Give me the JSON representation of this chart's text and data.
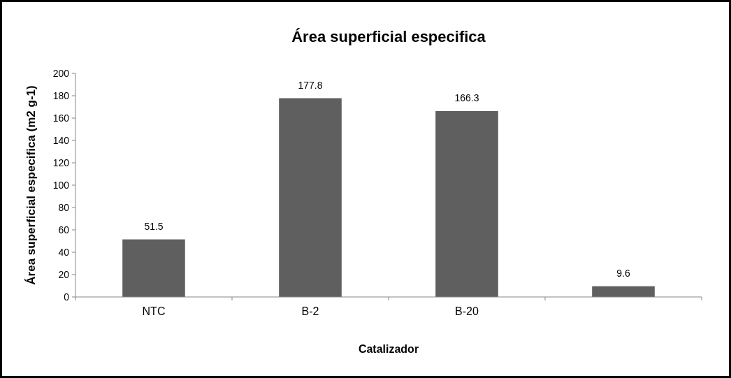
{
  "chart_data": {
    "type": "bar",
    "title": "Área superficial especifica",
    "xlabel": "Catalizador",
    "ylabel": "Área superficial especifica (m2 g-1)",
    "categories": [
      "NTC",
      "B-2",
      "B-20",
      null
    ],
    "values": [
      51.5,
      177.8,
      166.3,
      9.6
    ],
    "color": "#5f5f5f",
    "ylim": [
      0,
      200
    ],
    "yticks": [
      0,
      20,
      40,
      60,
      80,
      100,
      120,
      140,
      160,
      180,
      200
    ],
    "grid": false,
    "data_labels": true
  }
}
